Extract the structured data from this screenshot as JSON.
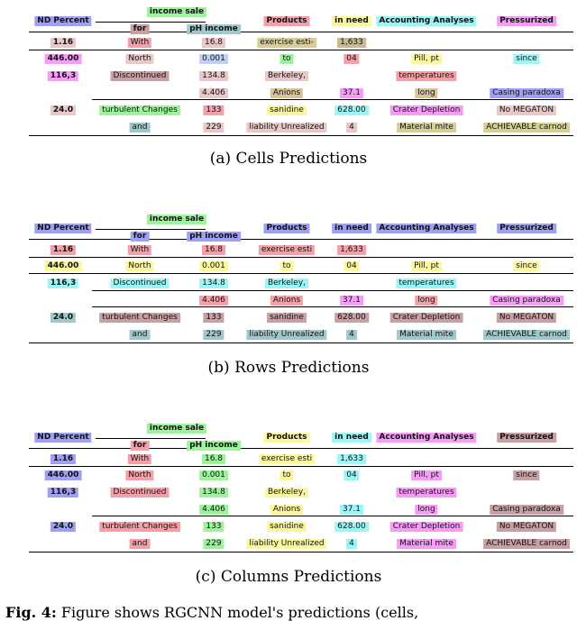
{
  "colors": {
    "blue": "#9fa0f4",
    "green": "#9cf39c",
    "pink": "#f3a0a8",
    "yellow": "#fbf79d",
    "cyan": "#9df6f6",
    "magenta": "#f69cf6",
    "tan": "#d8c49c",
    "khaki": "#d6d096",
    "mauve": "#c8a0a4",
    "teal": "#a0c8cc",
    "mustard": "#d8cc98",
    "darkkhaki": "#c4bc90",
    "lightpink": "#e8c8c8",
    "lightblue": "#c0d0f4"
  },
  "panels": [
    {
      "caption": "(a) Cells Predictions",
      "header_super": "income sale",
      "headers": [
        "ND Percent",
        "for",
        "pH income",
        "Products",
        "in need",
        "Accounting Analyses",
        "Pressurized"
      ],
      "rows": [
        [
          "1.16",
          "With",
          "16.8",
          "exercise esti-",
          "1,633",
          "",
          ""
        ],
        [
          "446.00",
          "North",
          "0.001",
          "to",
          "04",
          "Pill, pt",
          "since"
        ],
        [
          "116,3",
          "Discontinued",
          "134.8",
          "Berkeley,",
          "",
          "temperatures",
          ""
        ],
        [
          "",
          "",
          "4.406",
          "Anions",
          "37.1",
          "long",
          "Casing paradoxa"
        ],
        [
          "24.0",
          "turbulent Changes",
          "133",
          "sanidine",
          "628.00",
          "Crater Depletion",
          "No MEGATON"
        ],
        [
          "",
          "and",
          "229",
          "liability Unrealized",
          "4",
          "Material mite",
          "ACHIEVABLE carnod"
        ]
      ]
    },
    {
      "caption": "(b) Rows Predictions",
      "header_super": "income sale",
      "headers": [
        "ND Percent",
        "for",
        "pH income",
        "Products",
        "in need",
        "Accounting Analyses",
        "Pressurized"
      ],
      "rows": [
        [
          "1.16",
          "With",
          "16.8",
          "exercise esti",
          "1,633",
          "",
          ""
        ],
        [
          "446.00",
          "North",
          "0.001",
          "to",
          "04",
          "Pill, pt",
          "since"
        ],
        [
          "116,3",
          "Discontinued",
          "134.8",
          "Berkeley,",
          "",
          "temperatures",
          ""
        ],
        [
          "",
          "",
          "4.406",
          "Anions",
          "37.1",
          "long",
          "Casing paradoxa"
        ],
        [
          "24.0",
          "turbulent Changes",
          "133",
          "sanidine",
          "628.00",
          "Crater Depletion",
          "No MEGATON"
        ],
        [
          "",
          "and",
          "229",
          "liability Unrealized",
          "4",
          "Material mite",
          "ACHIEVABLE carnod"
        ]
      ]
    },
    {
      "caption": "(c) Columns Predictions",
      "header_super": "income sale",
      "headers": [
        "ND Percent",
        "for",
        "pH income",
        "Products",
        "in need",
        "Accounting Analyses",
        "Pressurized"
      ],
      "rows": [
        [
          "1.16",
          "With",
          "16.8",
          "exercise esti",
          "1,633",
          "",
          ""
        ],
        [
          "446.00",
          "North",
          "0.001",
          "to",
          "04",
          "Pill, pt",
          "since"
        ],
        [
          "116,3",
          "Discontinued",
          "134.8",
          "Berkeley,",
          "",
          "temperatures",
          ""
        ],
        [
          "",
          "",
          "4.406",
          "Anions",
          "37.1",
          "long",
          "Casing paradoxa"
        ],
        [
          "24.0",
          "turbulent Changes",
          "133",
          "sanidine",
          "628.00",
          "Crater Depletion",
          "No MEGATON"
        ],
        [
          "",
          "and",
          "229",
          "liability Unrealized",
          "4",
          "Material mite",
          "ACHIEVABLE carnod"
        ]
      ]
    }
  ],
  "footer_label": "Fig. 4:",
  "footer_text": "Figure shows RGCNN model's predictions (cells,"
}
